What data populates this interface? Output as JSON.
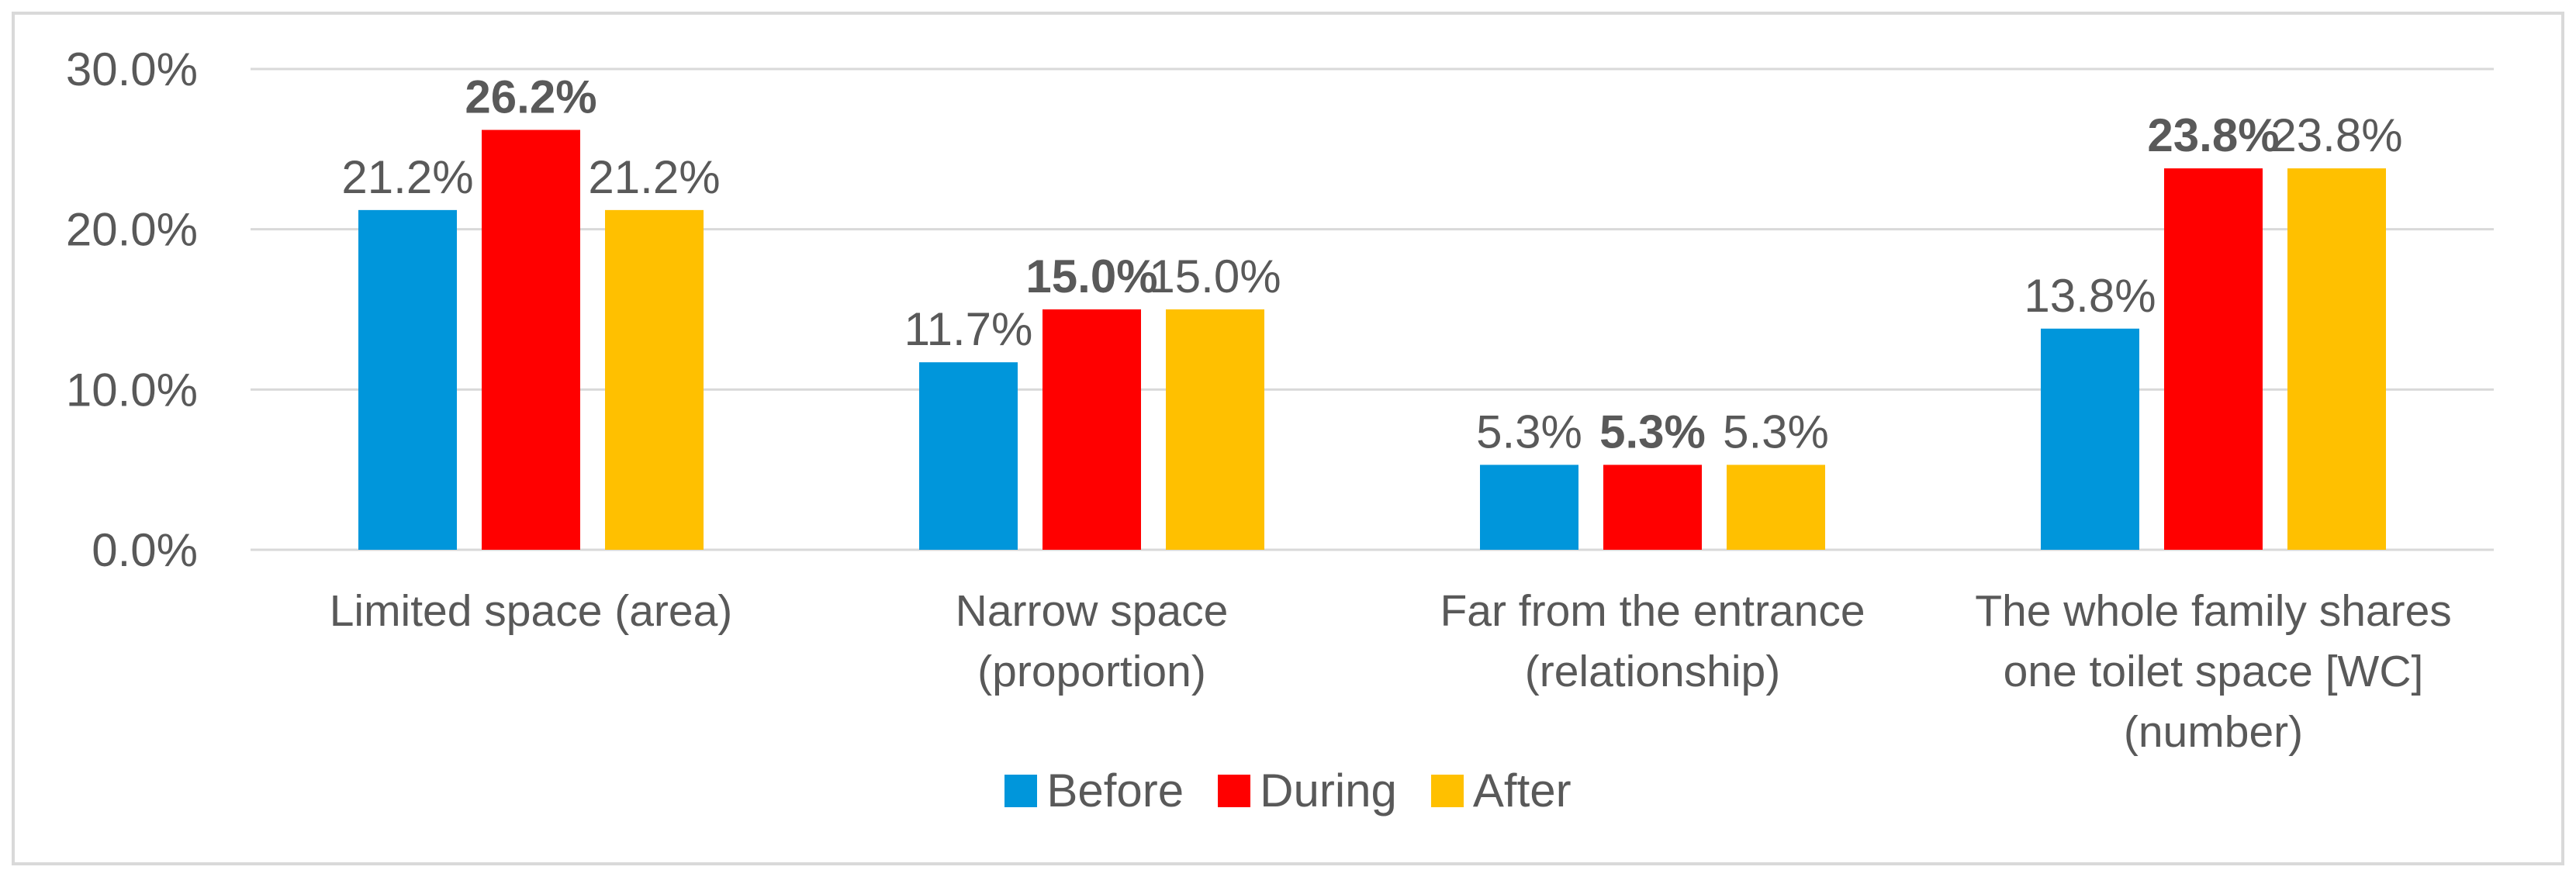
{
  "chart_data": {
    "type": "bar",
    "categories": [
      "Limited space (area)",
      "Narrow space (proportion)",
      "Far from the entrance (relationship)",
      "The whole family shares one toilet space [WC] (number)"
    ],
    "series": [
      {
        "name": "Before",
        "color": "#0096db",
        "values": [
          21.2,
          11.7,
          5.3,
          13.8
        ],
        "value_labels": [
          "21.2%",
          "11.7%",
          "5.3%",
          "13.8%"
        ],
        "label_bold": false
      },
      {
        "name": "During",
        "color": "#ff0000",
        "values": [
          26.2,
          15.0,
          5.3,
          23.8
        ],
        "value_labels": [
          "26.2%",
          "15.0%",
          "5.3%",
          "23.8%"
        ],
        "label_bold": true
      },
      {
        "name": "After",
        "color": "#ffc000",
        "values": [
          21.2,
          15.0,
          5.3,
          23.8
        ],
        "value_labels": [
          "21.2%",
          "15.0%",
          "5.3%",
          "23.8%"
        ],
        "label_bold": false
      }
    ],
    "ylim": [
      0,
      30
    ],
    "yticks": [
      {
        "value": 0,
        "label": "0.0%"
      },
      {
        "value": 10,
        "label": "10.0%"
      },
      {
        "value": 20,
        "label": "20.0%"
      },
      {
        "value": 30,
        "label": "30.0%"
      }
    ],
    "grid": true,
    "legend": "bottom"
  }
}
